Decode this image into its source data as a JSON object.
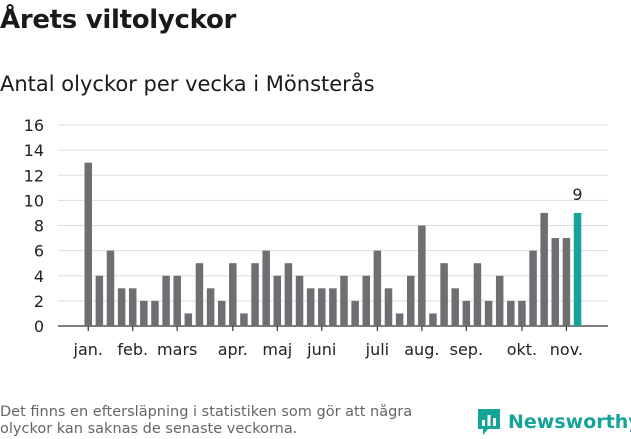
{
  "title": "Årets viltolyckor",
  "subtitle": "Antal olyckor per vecka i Mönsterås",
  "footnote": "Det finns en eftersläpning i statistiken som gör att några olyckor kan saknas de senaste veckorna.",
  "brand": "Newsworthy",
  "colors": {
    "bar": "#6e6e73",
    "highlight": "#16a39a",
    "grid": "#dddddd",
    "axis": "#333333",
    "brand": "#16a39a"
  },
  "chart_data": {
    "type": "bar",
    "title": "Antal olyckor per vecka i Mönsterås",
    "ylim": [
      0,
      16
    ],
    "yticks": [
      0,
      2,
      4,
      6,
      8,
      10,
      12,
      14,
      16
    ],
    "grid": true,
    "values": [
      13,
      4,
      6,
      3,
      3,
      2,
      2,
      4,
      4,
      1,
      5,
      3,
      2,
      5,
      1,
      5,
      6,
      4,
      5,
      4,
      3,
      3,
      3,
      4,
      2,
      4,
      6,
      3,
      1,
      4,
      8,
      1,
      5,
      3,
      2,
      5,
      2,
      4,
      2,
      2,
      6,
      9,
      7,
      7,
      9
    ],
    "highlight_index": 44,
    "highlight_label": "9",
    "month_labels": [
      {
        "label": "jan.",
        "index": 0
      },
      {
        "label": "feb.",
        "index": 4
      },
      {
        "label": "mars",
        "index": 8
      },
      {
        "label": "apr.",
        "index": 13
      },
      {
        "label": "maj",
        "index": 17
      },
      {
        "label": "juni",
        "index": 21
      },
      {
        "label": "juli",
        "index": 26
      },
      {
        "label": "aug.",
        "index": 30
      },
      {
        "label": "sep.",
        "index": 34
      },
      {
        "label": "okt.",
        "index": 39
      },
      {
        "label": "nov.",
        "index": 43
      }
    ]
  }
}
